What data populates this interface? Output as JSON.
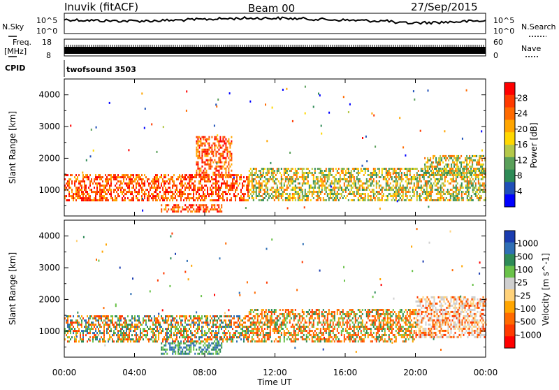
{
  "header": {
    "station": "Inuvik (fitACF)",
    "beam": "Beam 00",
    "date": "27/Sep/2015"
  },
  "top_panels": {
    "noise": {
      "left_label": "N.Sky",
      "right_label": "N.Search",
      "left_ticks": [
        "10^5",
        "10^0"
      ],
      "right_ticks": [
        "10^5",
        "10^0"
      ]
    },
    "freq": {
      "left_label_1": "Freq.",
      "left_label_2": "[MHz]",
      "left_ticks": [
        "18",
        "8"
      ],
      "right_label": "Nave",
      "right_ticks": [
        "60",
        "0"
      ]
    },
    "cpid": {
      "label": "CPID",
      "value": "twofsound 3503"
    }
  },
  "x_axis": {
    "label": "Time UT",
    "ticks": [
      "00:00",
      "04:00",
      "08:00",
      "12:00",
      "16:00",
      "20:00",
      "00:00"
    ]
  },
  "chart_data": [
    {
      "type": "heatmap",
      "title": "",
      "ylabel": "Slant Range [km]",
      "xlabel": "",
      "xlim_hours": [
        0,
        24
      ],
      "ylim_km": [
        180,
        4500
      ],
      "y_ticks": [
        1000,
        2000,
        3000,
        4000
      ],
      "colorbar": {
        "label": "Power [dB]",
        "ticks": [
          "4",
          "8",
          "12",
          "16",
          "20",
          "24",
          "28"
        ],
        "colors": [
          "#0000ff",
          "#1f4fb8",
          "#2e8b57",
          "#5aa05a",
          "#b4c84a",
          "#ffd700",
          "#ffa500",
          "#ff6a00",
          "#ff3a00",
          "#ff0000"
        ]
      },
      "bands": [
        {
          "t_start": 0.0,
          "t_end": 10.5,
          "r_low": 650,
          "r_high": 1500,
          "level": "high"
        },
        {
          "t_start": 10.5,
          "t_end": 24.0,
          "r_low": 650,
          "r_high": 1700,
          "level": "medium"
        },
        {
          "t_start": 7.5,
          "t_end": 9.5,
          "r_low": 1400,
          "r_high": 2700,
          "level": "high"
        },
        {
          "t_start": 5.5,
          "t_end": 9.0,
          "r_low": 300,
          "r_high": 550,
          "level": "high"
        },
        {
          "t_start": 20.5,
          "t_end": 24.0,
          "r_low": 1500,
          "r_high": 2100,
          "level": "medium"
        }
      ]
    },
    {
      "type": "heatmap",
      "title": "",
      "ylabel": "Slant Range [km]",
      "xlabel": "Time UT",
      "xlim_hours": [
        0,
        24
      ],
      "ylim_km": [
        180,
        4500
      ],
      "y_ticks": [
        1000,
        2000,
        3000,
        4000
      ],
      "colorbar": {
        "label": "Velocity [m s^-1]",
        "ticks": [
          "1000",
          "500",
          "100",
          "25",
          "-25",
          "-100",
          "-500",
          "-1000"
        ],
        "colors": [
          "#1a3cb0",
          "#2f6fb5",
          "#2e8b57",
          "#6ac24a",
          "#cfcfcf",
          "#ffd27a",
          "#ffa500",
          "#ff6a00",
          "#ff3a00",
          "#ff0000"
        ]
      },
      "bands": [
        {
          "t_start": 0.0,
          "t_end": 10.5,
          "r_low": 650,
          "r_high": 1500,
          "level": "mixed-green-orange"
        },
        {
          "t_start": 10.5,
          "t_end": 20.0,
          "r_low": 650,
          "r_high": 1700,
          "level": "orange-green"
        },
        {
          "t_start": 20.0,
          "t_end": 24.0,
          "r_low": 800,
          "r_high": 2100,
          "level": "grey-orange"
        },
        {
          "t_start": 5.5,
          "t_end": 9.0,
          "r_low": 300,
          "r_high": 650,
          "level": "green"
        }
      ]
    }
  ]
}
